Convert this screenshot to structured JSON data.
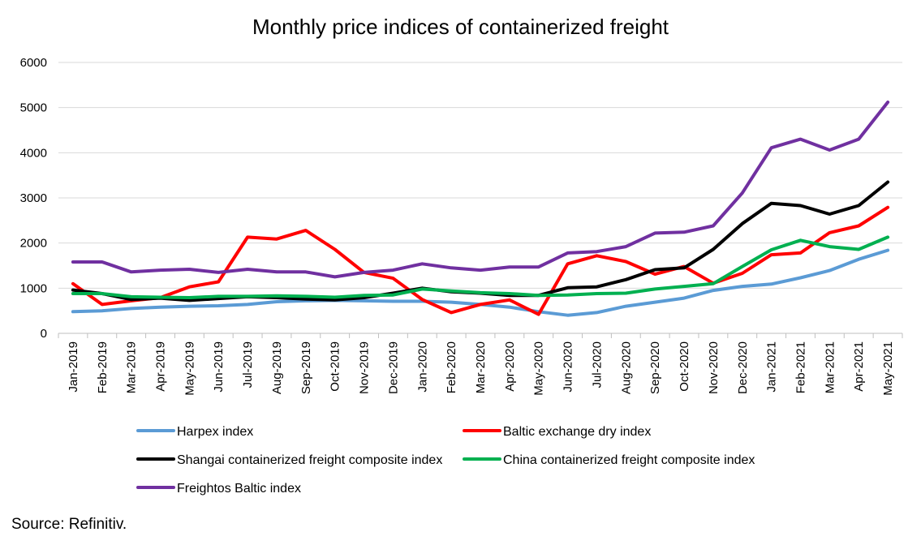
{
  "source_note": "Source: Refinitiv.",
  "chart_data": {
    "type": "line",
    "title": "Monthly price indices of containerized freight",
    "xlabel": "",
    "ylabel": "",
    "ylim": [
      0,
      6000
    ],
    "yticks": [
      0,
      1000,
      2000,
      3000,
      4000,
      5000,
      6000
    ],
    "grid": true,
    "legend_position": "bottom",
    "categories": [
      "Jan-2019",
      "Feb-2019",
      "Mar-2019",
      "Apr-2019",
      "May-2019",
      "Jun-2019",
      "Jul-2019",
      "Aug-2019",
      "Sep-2019",
      "Oct-2019",
      "Nov-2019",
      "Dec-2019",
      "Jan-2020",
      "Feb-2020",
      "Mar-2020",
      "Apr-2020",
      "May-2020",
      "Jun-2020",
      "Jul-2020",
      "Aug-2020",
      "Sep-2020",
      "Oct-2020",
      "Nov-2020",
      "Dec-2020",
      "Jan-2021",
      "Feb-2021",
      "Mar-2021",
      "Apr-2021",
      "May-2021"
    ],
    "series": [
      {
        "name": "Harpex index",
        "color": "#5B9BD5",
        "values": [
          480,
          500,
          550,
          580,
          600,
          610,
          640,
          700,
          720,
          730,
          720,
          710,
          710,
          690,
          640,
          580,
          480,
          400,
          460,
          600,
          690,
          780,
          950,
          1040,
          1090,
          1230,
          1390,
          1640,
          1840
        ]
      },
      {
        "name": "Baltic exchange dry index",
        "color": "#FF0000",
        "values": [
          1100,
          640,
          720,
          790,
          1030,
          1140,
          2130,
          2090,
          2280,
          1860,
          1350,
          1220,
          750,
          460,
          640,
          740,
          420,
          1540,
          1720,
          1590,
          1310,
          1480,
          1110,
          1330,
          1740,
          1780,
          2230,
          2380,
          2790
        ]
      },
      {
        "name": "Shangai containerized freight composite index",
        "color": "#000000",
        "values": [
          960,
          880,
          750,
          780,
          730,
          770,
          810,
          790,
          760,
          740,
          790,
          890,
          1000,
          920,
          890,
          840,
          840,
          1010,
          1030,
          1190,
          1410,
          1450,
          1860,
          2430,
          2880,
          2830,
          2640,
          2830,
          3350
        ]
      },
      {
        "name": "China containerized freight composite index",
        "color": "#00B050",
        "values": [
          880,
          880,
          810,
          800,
          790,
          820,
          820,
          830,
          820,
          800,
          840,
          850,
          980,
          940,
          900,
          880,
          840,
          850,
          880,
          890,
          980,
          1040,
          1100,
          1480,
          1850,
          2060,
          1920,
          1860,
          2130
        ]
      },
      {
        "name": "Freightos Baltic index",
        "color": "#7030A0",
        "values": [
          1580,
          1580,
          1360,
          1400,
          1420,
          1350,
          1420,
          1360,
          1360,
          1250,
          1350,
          1400,
          1540,
          1450,
          1400,
          1470,
          1470,
          1780,
          1810,
          1920,
          2220,
          2240,
          2380,
          3110,
          4110,
          4300,
          4060,
          4300,
          5120
        ]
      }
    ]
  }
}
